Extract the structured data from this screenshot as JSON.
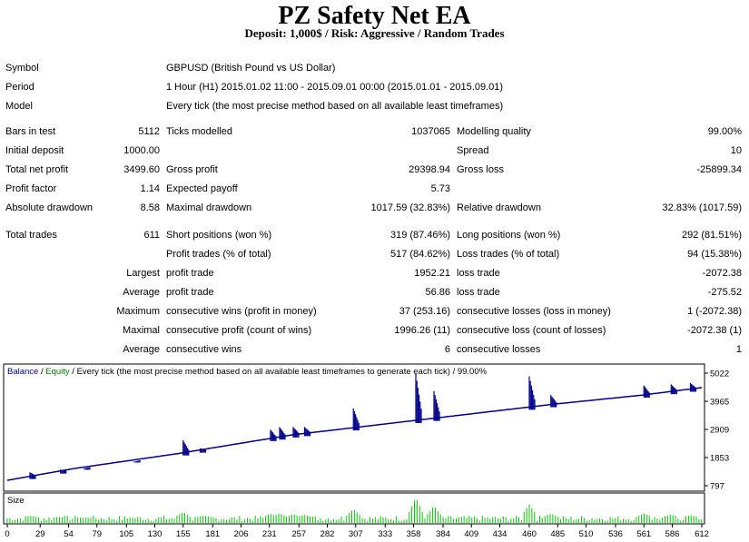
{
  "report": {
    "title": "PZ Safety Net EA",
    "subtitle": "Deposit: 1,000$ / Risk: Aggressive / Random Trades"
  },
  "info": {
    "symbol_label": "Symbol",
    "symbol_value": "GBPUSD (British Pound vs US Dollar)",
    "period_label": "Period",
    "period_value": "1 Hour (H1) 2015.01.02 11:00 - 2015.09.01 00:00 (2015.01.01 - 2015.09.01)",
    "model_label": "Model",
    "model_value": "Every tick (the most precise method based on all available least timeframes)"
  },
  "stats": {
    "bars_label": "Bars in test",
    "bars_value": "5112",
    "ticks_label": "Ticks modelled",
    "ticks_value": "1037065",
    "quality_label": "Modelling quality",
    "quality_value": "99.00%",
    "spread_label": "Spread",
    "spread_value": "10",
    "init_dep_label": "Initial deposit",
    "init_dep_value": "1000.00",
    "net_profit_label": "Total net profit",
    "net_profit_value": "3499.60",
    "gross_profit_label": "Gross profit",
    "gross_profit_value": "29398.94",
    "gross_loss_label": "Gross loss",
    "gross_loss_value": "-25899.34",
    "pf_label": "Profit factor",
    "pf_value": "1.14",
    "exp_payoff_label": "Expected payoff",
    "exp_payoff_value": "5.73",
    "abs_dd_label": "Absolute drawdown",
    "abs_dd_value": "8.58",
    "max_dd_label": "Maximal drawdown",
    "max_dd_value": "1017.59 (32.83%)",
    "rel_dd_label": "Relative drawdown",
    "rel_dd_value": "32.83% (1017.59)",
    "total_trades_label": "Total trades",
    "total_trades_value": "611",
    "short_label": "Short positions (won %)",
    "short_value": "319 (87.46%)",
    "long_label": "Long positions (won %)",
    "long_value": "292 (81.51%)",
    "profit_trades_label": "Profit trades (% of total)",
    "profit_trades_value": "517 (84.62%)",
    "loss_trades_label": "Loss trades (% of total)",
    "loss_trades_value": "94 (15.38%)",
    "largest_label": "Largest",
    "largest_pt_label": "profit trade",
    "largest_pt_value": "1952.21",
    "largest_lt_label": "loss trade",
    "largest_lt_value": "-2072.38",
    "average_label": "Average",
    "average_pt_label": "profit trade",
    "average_pt_value": "56.86",
    "average_lt_label": "loss trade",
    "average_lt_value": "-275.52",
    "maximum_label": "Maximum",
    "max_cw_label": "consecutive wins (profit in money)",
    "max_cw_value": "37 (253.16)",
    "max_cl_label": "consecutive losses (loss in money)",
    "max_cl_value": "1 (-2072.38)",
    "maximal_label": "Maximal",
    "mx_cp_label": "consecutive profit (count of wins)",
    "mx_cp_value": "1996.26 (11)",
    "mx_cl_label": "consecutive loss (count of losses)",
    "mx_cl_value": "-2072.38 (1)",
    "avg2_label": "Average",
    "avg_cw_label": "consecutive wins",
    "avg_cw_value": "6",
    "avg_cl_label": "consecutive losses",
    "avg_cl_value": "1"
  },
  "chart_header": {
    "balance": "Balance",
    "sep": " / ",
    "equity": "Equity",
    "rest": " / Every tick (the most precise method based on all available least timeframes to generate each tick) / 99.00%",
    "size_label": "Size"
  },
  "colors": {
    "balance": "#00008b",
    "equity": "#008000",
    "size": "#00c800"
  },
  "chart_data": {
    "type": "line",
    "series": [
      {
        "name": "Balance",
        "x": [
          0,
          60,
          150,
          250,
          360,
          440,
          480,
          560,
          612
        ],
        "values": [
          1000,
          1450,
          2000,
          2700,
          3250,
          3650,
          3850,
          4200,
          4480
        ]
      }
    ],
    "y_ticks": [
      "5022",
      "3965",
      "2909",
      "1853",
      "797"
    ],
    "ylim": [
      797,
      5022
    ],
    "x_ticks": [
      "0",
      "29",
      "54",
      "79",
      "105",
      "130",
      "155",
      "181",
      "206",
      "231",
      "257",
      "282",
      "307",
      "333",
      "358",
      "384",
      "409",
      "434",
      "460",
      "485",
      "510",
      "536",
      "561",
      "586",
      "612"
    ],
    "xlim": [
      0,
      612
    ],
    "spikes": [
      {
        "x": 20,
        "peak": 1300
      },
      {
        "x": 47,
        "peak": 1400
      },
      {
        "x": 68,
        "peak": 1450
      },
      {
        "x": 112,
        "peak": 1700
      },
      {
        "x": 155,
        "peak": 2500
      },
      {
        "x": 170,
        "peak": 2200
      },
      {
        "x": 232,
        "peak": 2900
      },
      {
        "x": 240,
        "peak": 3000
      },
      {
        "x": 252,
        "peak": 3000
      },
      {
        "x": 262,
        "peak": 3000
      },
      {
        "x": 305,
        "peak": 3700
      },
      {
        "x": 360,
        "peak": 5000
      },
      {
        "x": 376,
        "peak": 4350
      },
      {
        "x": 460,
        "peak": 4900
      },
      {
        "x": 479,
        "peak": 4200
      },
      {
        "x": 561,
        "peak": 4560
      },
      {
        "x": 585,
        "peak": 4600
      },
      {
        "x": 602,
        "peak": 4650
      }
    ]
  }
}
